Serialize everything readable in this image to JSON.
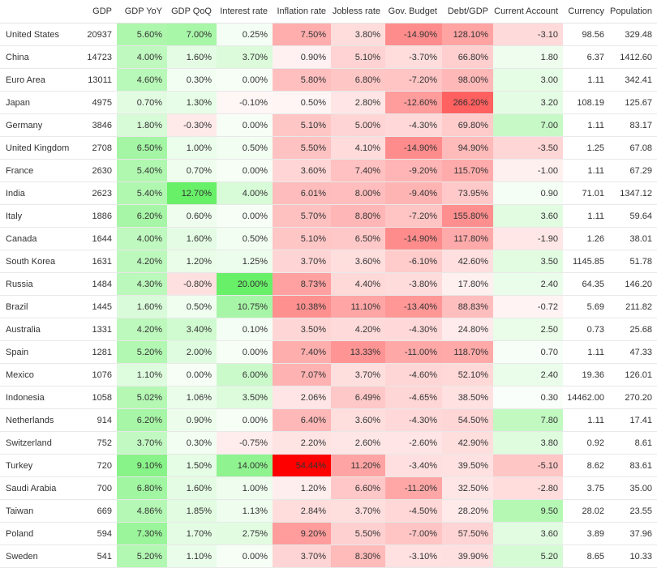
{
  "columns": [
    "",
    "GDP",
    "GDP YoY",
    "GDP QoQ",
    "Interest rate",
    "Inflation rate",
    "Jobless rate",
    "Gov. Budget",
    "Debt/GDP",
    "Current Account",
    "Currency",
    "Population"
  ],
  "rows": [
    {
      "country": "United States",
      "gdp": "20937",
      "gdp_yoy": "5.60%",
      "gdp_qoq": "7.00%",
      "interest": "0.25%",
      "inflation": "7.50%",
      "jobless": "3.80%",
      "budget": "-14.90%",
      "debt": "128.10%",
      "current_account": "-3.10",
      "currency": "98.56",
      "population": "329.48"
    },
    {
      "country": "China",
      "gdp": "14723",
      "gdp_yoy": "4.00%",
      "gdp_qoq": "1.60%",
      "interest": "3.70%",
      "inflation": "0.90%",
      "jobless": "5.10%",
      "budget": "-3.70%",
      "debt": "66.80%",
      "current_account": "1.80",
      "currency": "6.37",
      "population": "1412.60"
    },
    {
      "country": "Euro Area",
      "gdp": "13011",
      "gdp_yoy": "4.60%",
      "gdp_qoq": "0.30%",
      "interest": "0.00%",
      "inflation": "5.80%",
      "jobless": "6.80%",
      "budget": "-7.20%",
      "debt": "98.00%",
      "current_account": "3.00",
      "currency": "1.11",
      "population": "342.41"
    },
    {
      "country": "Japan",
      "gdp": "4975",
      "gdp_yoy": "0.70%",
      "gdp_qoq": "1.30%",
      "interest": "-0.10%",
      "inflation": "0.50%",
      "jobless": "2.80%",
      "budget": "-12.60%",
      "debt": "266.20%",
      "current_account": "3.20",
      "currency": "108.19",
      "population": "125.67"
    },
    {
      "country": "Germany",
      "gdp": "3846",
      "gdp_yoy": "1.80%",
      "gdp_qoq": "-0.30%",
      "interest": "0.00%",
      "inflation": "5.10%",
      "jobless": "5.00%",
      "budget": "-4.30%",
      "debt": "69.80%",
      "current_account": "7.00",
      "currency": "1.11",
      "population": "83.17"
    },
    {
      "country": "United Kingdom",
      "gdp": "2708",
      "gdp_yoy": "6.50%",
      "gdp_qoq": "1.00%",
      "interest": "0.50%",
      "inflation": "5.50%",
      "jobless": "4.10%",
      "budget": "-14.90%",
      "debt": "94.90%",
      "current_account": "-3.50",
      "currency": "1.25",
      "population": "67.08"
    },
    {
      "country": "France",
      "gdp": "2630",
      "gdp_yoy": "5.40%",
      "gdp_qoq": "0.70%",
      "interest": "0.00%",
      "inflation": "3.60%",
      "jobless": "7.40%",
      "budget": "-9.20%",
      "debt": "115.70%",
      "current_account": "-1.00",
      "currency": "1.11",
      "population": "67.29"
    },
    {
      "country": "India",
      "gdp": "2623",
      "gdp_yoy": "5.40%",
      "gdp_qoq": "12.70%",
      "interest": "4.00%",
      "inflation": "6.01%",
      "jobless": "8.00%",
      "budget": "-9.40%",
      "debt": "73.95%",
      "current_account": "0.90",
      "currency": "71.01",
      "population": "1347.12"
    },
    {
      "country": "Italy",
      "gdp": "1886",
      "gdp_yoy": "6.20%",
      "gdp_qoq": "0.60%",
      "interest": "0.00%",
      "inflation": "5.70%",
      "jobless": "8.80%",
      "budget": "-7.20%",
      "debt": "155.80%",
      "current_account": "3.60",
      "currency": "1.11",
      "population": "59.64"
    },
    {
      "country": "Canada",
      "gdp": "1644",
      "gdp_yoy": "4.00%",
      "gdp_qoq": "1.60%",
      "interest": "0.50%",
      "inflation": "5.10%",
      "jobless": "6.50%",
      "budget": "-14.90%",
      "debt": "117.80%",
      "current_account": "-1.90",
      "currency": "1.26",
      "population": "38.01"
    },
    {
      "country": "South Korea",
      "gdp": "1631",
      "gdp_yoy": "4.20%",
      "gdp_qoq": "1.20%",
      "interest": "1.25%",
      "inflation": "3.70%",
      "jobless": "3.60%",
      "budget": "-6.10%",
      "debt": "42.60%",
      "current_account": "3.50",
      "currency": "1145.85",
      "population": "51.78"
    },
    {
      "country": "Russia",
      "gdp": "1484",
      "gdp_yoy": "4.30%",
      "gdp_qoq": "-0.80%",
      "interest": "20.00%",
      "inflation": "8.73%",
      "jobless": "4.40%",
      "budget": "-3.80%",
      "debt": "17.80%",
      "current_account": "2.40",
      "currency": "64.35",
      "population": "146.20"
    },
    {
      "country": "Brazil",
      "gdp": "1445",
      "gdp_yoy": "1.60%",
      "gdp_qoq": "0.50%",
      "interest": "10.75%",
      "inflation": "10.38%",
      "jobless": "11.10%",
      "budget": "-13.40%",
      "debt": "88.83%",
      "current_account": "-0.72",
      "currency": "5.69",
      "population": "211.82"
    },
    {
      "country": "Australia",
      "gdp": "1331",
      "gdp_yoy": "4.20%",
      "gdp_qoq": "3.40%",
      "interest": "0.10%",
      "inflation": "3.50%",
      "jobless": "4.20%",
      "budget": "-4.30%",
      "debt": "24.80%",
      "current_account": "2.50",
      "currency": "0.73",
      "population": "25.68"
    },
    {
      "country": "Spain",
      "gdp": "1281",
      "gdp_yoy": "5.20%",
      "gdp_qoq": "2.00%",
      "interest": "0.00%",
      "inflation": "7.40%",
      "jobless": "13.33%",
      "budget": "-11.00%",
      "debt": "118.70%",
      "current_account": "0.70",
      "currency": "1.11",
      "population": "47.33"
    },
    {
      "country": "Mexico",
      "gdp": "1076",
      "gdp_yoy": "1.10%",
      "gdp_qoq": "0.00%",
      "interest": "6.00%",
      "inflation": "7.07%",
      "jobless": "3.70%",
      "budget": "-4.60%",
      "debt": "52.10%",
      "current_account": "2.40",
      "currency": "19.36",
      "population": "126.01"
    },
    {
      "country": "Indonesia",
      "gdp": "1058",
      "gdp_yoy": "5.02%",
      "gdp_qoq": "1.06%",
      "interest": "3.50%",
      "inflation": "2.06%",
      "jobless": "6.49%",
      "budget": "-4.65%",
      "debt": "38.50%",
      "current_account": "0.30",
      "currency": "14462.00",
      "population": "270.20"
    },
    {
      "country": "Netherlands",
      "gdp": "914",
      "gdp_yoy": "6.20%",
      "gdp_qoq": "0.90%",
      "interest": "0.00%",
      "inflation": "6.40%",
      "jobless": "3.60%",
      "budget": "-4.30%",
      "debt": "54.50%",
      "current_account": "7.80",
      "currency": "1.11",
      "population": "17.41"
    },
    {
      "country": "Switzerland",
      "gdp": "752",
      "gdp_yoy": "3.70%",
      "gdp_qoq": "0.30%",
      "interest": "-0.75%",
      "inflation": "2.20%",
      "jobless": "2.60%",
      "budget": "-2.60%",
      "debt": "42.90%",
      "current_account": "3.80",
      "currency": "0.92",
      "population": "8.61"
    },
    {
      "country": "Turkey",
      "gdp": "720",
      "gdp_yoy": "9.10%",
      "gdp_qoq": "1.50%",
      "interest": "14.00%",
      "inflation": "54.44%",
      "jobless": "11.20%",
      "budget": "-3.40%",
      "debt": "39.50%",
      "current_account": "-5.10",
      "currency": "8.62",
      "population": "83.61"
    },
    {
      "country": "Saudi Arabia",
      "gdp": "700",
      "gdp_yoy": "6.80%",
      "gdp_qoq": "1.60%",
      "interest": "1.00%",
      "inflation": "1.20%",
      "jobless": "6.60%",
      "budget": "-11.20%",
      "debt": "32.50%",
      "current_account": "-2.80",
      "currency": "3.75",
      "population": "35.00"
    },
    {
      "country": "Taiwan",
      "gdp": "669",
      "gdp_yoy": "4.86%",
      "gdp_qoq": "1.85%",
      "interest": "1.13%",
      "inflation": "2.84%",
      "jobless": "3.70%",
      "budget": "-4.50%",
      "debt": "28.20%",
      "current_account": "9.50",
      "currency": "28.02",
      "population": "23.55"
    },
    {
      "country": "Poland",
      "gdp": "594",
      "gdp_yoy": "7.30%",
      "gdp_qoq": "1.70%",
      "interest": "2.75%",
      "inflation": "9.20%",
      "jobless": "5.50%",
      "budget": "-7.00%",
      "debt": "57.50%",
      "current_account": "3.60",
      "currency": "3.89",
      "population": "37.96"
    },
    {
      "country": "Sweden",
      "gdp": "541",
      "gdp_yoy": "5.20%",
      "gdp_qoq": "1.10%",
      "interest": "0.00%",
      "inflation": "3.70%",
      "jobless": "8.30%",
      "budget": "-3.10%",
      "debt": "39.90%",
      "current_account": "5.20",
      "currency": "8.65",
      "population": "10.33"
    }
  ]
}
